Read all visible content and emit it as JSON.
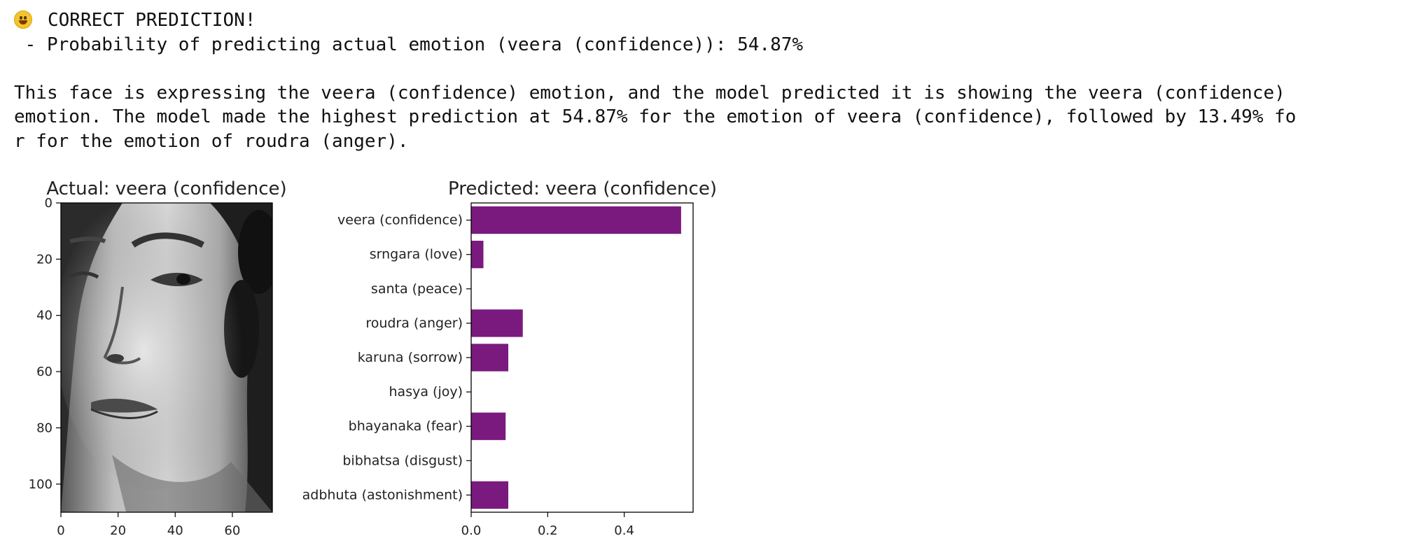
{
  "output": {
    "emoji": "grinning-face",
    "status_line": "CORRECT PREDICTION!",
    "probability_line": " - Probability of predicting actual emotion (veera (confidence)): 54.87%",
    "explanation": "This face is expressing the veera (confidence) emotion, and the model predicted it is showing the veera (confidence)\nemotion. The model made the highest prediction at 54.87% for the emotion of veera (confidence), followed by 13.49% fo\nr for the emotion of roudra (anger)."
  },
  "chart_data": [
    {
      "type": "image",
      "title": "Actual: veera (confidence)",
      "image_kind": "grayscale face photo",
      "x_ticks": [
        0,
        20,
        40,
        60
      ],
      "y_ticks": [
        0,
        20,
        40,
        60,
        80,
        100
      ],
      "xlim": [
        0,
        74
      ],
      "ylim": [
        110,
        0
      ]
    },
    {
      "type": "bar",
      "orientation": "horizontal",
      "title": "Predicted: veera (confidence)",
      "categories": [
        "veera (confidence)",
        "srngara (love)",
        "santa (peace)",
        "roudra (anger)",
        "karuna (sorrow)",
        "hasya (joy)",
        "bhayanaka (fear)",
        "bibhatsa (disgust)",
        "adbhuta (astonishment)"
      ],
      "values": [
        0.5487,
        0.032,
        0.0,
        0.1349,
        0.097,
        0.0,
        0.09,
        0.0,
        0.097
      ],
      "x_ticks": [
        0.0,
        0.2,
        0.4
      ],
      "x_tick_labels": [
        "0.0",
        "0.2",
        "0.4"
      ],
      "xlim": [
        0,
        0.58
      ],
      "bar_color": "#7a1a7e"
    }
  ]
}
